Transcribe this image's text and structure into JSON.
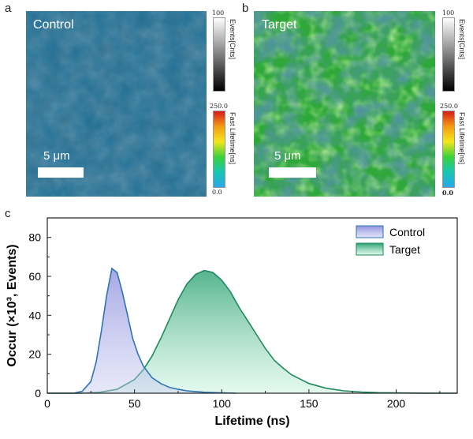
{
  "panels": {
    "a": {
      "letter": "a",
      "label": "Control",
      "scale_text": "5 μm",
      "colors": {
        "base": "#1f6f95",
        "light": "#2a86a8",
        "dark": "#1a5e84"
      },
      "events_bar": {
        "title": "Events[Cnts]",
        "max": "100",
        "min": ""
      },
      "lifetime_bar": {
        "title": "Fast Lifetime[ns]",
        "max": "250.0",
        "min": "0.0"
      }
    },
    "b": {
      "letter": "b",
      "label": "Target",
      "scale_text": "5 μm",
      "colors": {
        "base": "#2fa83a",
        "light": "#5fd04a",
        "dark": "#1e5e5a"
      },
      "events_bar": {
        "title": "Events[Cnts]",
        "max": "100",
        "min": ""
      },
      "lifetime_bar": {
        "title": "Fast Lifetime[ns]",
        "max": "250.0",
        "min": "0.0"
      }
    },
    "c": {
      "letter": "c"
    }
  },
  "chart_data": {
    "type": "area",
    "title": "",
    "xlabel": "Lifetime (ns)",
    "ylabel": "Occur (×10³, Events)",
    "xlim": [
      0,
      235
    ],
    "ylim": [
      0,
      90
    ],
    "xticks": [
      0,
      50,
      100,
      150,
      200
    ],
    "yticks": [
      0,
      20,
      40,
      60,
      80
    ],
    "legend_position": "top-right",
    "series": [
      {
        "name": "Control",
        "line_color": "#2e74b5",
        "fill_color": "#8f93de",
        "x": [
          0,
          15,
          20,
          25,
          28,
          31,
          34,
          37,
          40,
          43,
          46,
          49,
          52,
          55,
          60,
          65,
          70,
          75,
          80,
          90,
          100,
          108
        ],
        "y": [
          0,
          0,
          1,
          6,
          16,
          32,
          50,
          64,
          62,
          52,
          40,
          28,
          20,
          14,
          8,
          5,
          3,
          2,
          1.2,
          0.5,
          0.2,
          0
        ]
      },
      {
        "name": "Target",
        "line_color": "#1e8a5c",
        "fill_color": "#3bbf88",
        "x": [
          0,
          20,
          30,
          40,
          50,
          55,
          60,
          65,
          70,
          75,
          80,
          85,
          90,
          95,
          100,
          105,
          110,
          115,
          120,
          125,
          130,
          135,
          140,
          150,
          160,
          170,
          180,
          190,
          200,
          215,
          235
        ],
        "y": [
          0,
          0,
          0.5,
          2,
          7,
          12,
          19,
          28,
          38,
          48,
          56,
          61,
          63,
          62,
          58,
          52,
          44,
          37,
          30,
          23,
          17,
          13,
          9.5,
          5,
          2.5,
          1.2,
          0.6,
          0.3,
          0.15,
          0.05,
          0
        ]
      }
    ]
  }
}
